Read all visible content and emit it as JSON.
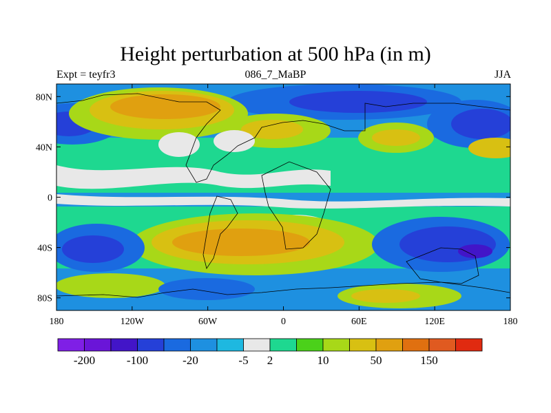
{
  "chart_data": {
    "type": "heatmap",
    "title": "Height perturbation at 500 hPa (in m)",
    "subtitle_left": "Expt = teyfr3",
    "subtitle_center": "086_7_MaBP",
    "subtitle_right": "JJA",
    "x_axis": {
      "range": [
        -180,
        180
      ],
      "ticks": [
        {
          "value": -180,
          "label": "180"
        },
        {
          "value": -120,
          "label": "120W"
        },
        {
          "value": -60,
          "label": "60W"
        },
        {
          "value": 0,
          "label": "0"
        },
        {
          "value": 60,
          "label": "60E"
        },
        {
          "value": 120,
          "label": "120E"
        },
        {
          "value": 180,
          "label": "180"
        }
      ]
    },
    "y_axis": {
      "range": [
        -90,
        90
      ],
      "ticks": [
        {
          "value": 80,
          "label": "80N"
        },
        {
          "value": 40,
          "label": "40N"
        },
        {
          "value": 0,
          "label": "0"
        },
        {
          "value": -40,
          "label": "40S"
        },
        {
          "value": -80,
          "label": "80S"
        }
      ]
    },
    "colorbar": {
      "colors": [
        "#7f1fe6",
        "#6a15d8",
        "#4215c8",
        "#2540d8",
        "#1a6ae0",
        "#1e90e0",
        "#1eb8e0",
        "#e8e8e8",
        "#1ed890",
        "#4bd11a",
        "#a8d818",
        "#d8c012",
        "#e0a010",
        "#e07010",
        "#e05a20",
        "#e02a10"
      ],
      "labels": [
        {
          "after_box": 1,
          "text": "-200"
        },
        {
          "after_box": 3,
          "text": "-100"
        },
        {
          "after_box": 5,
          "text": "-20"
        },
        {
          "after_box": 7,
          "text": "-5"
        },
        {
          "after_box": 8,
          "text": "2"
        },
        {
          "after_box": 10,
          "text": "10"
        },
        {
          "after_box": 12,
          "text": "50"
        },
        {
          "after_box": 14,
          "text": "150"
        }
      ]
    }
  }
}
